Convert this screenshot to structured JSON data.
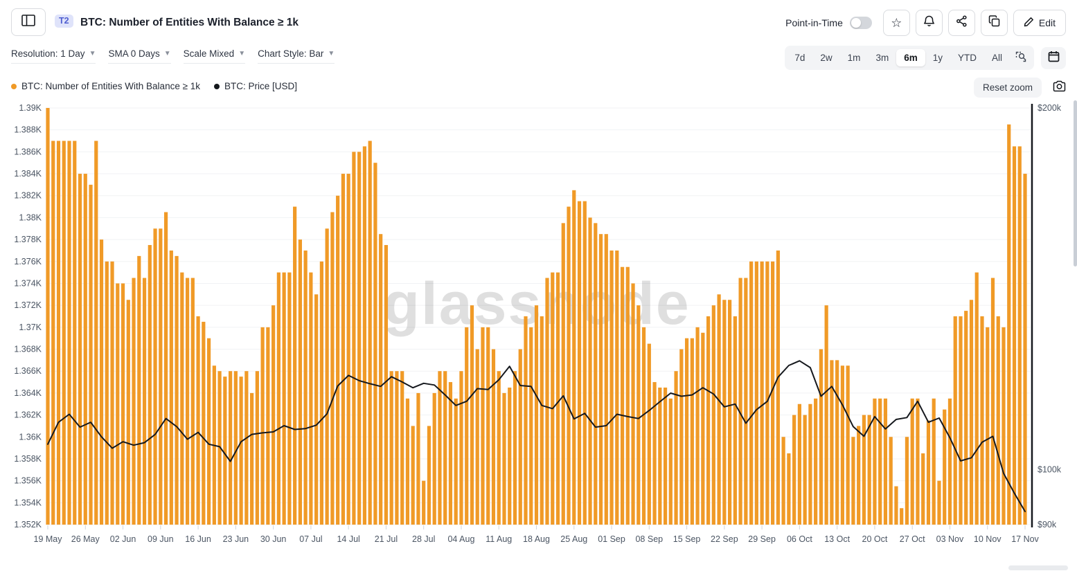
{
  "header": {
    "t2_badge": "T2",
    "title": "BTC: Number of Entities With Balance ≥ 1k",
    "point_in_time_label": "Point-in-Time",
    "point_in_time_state": "off",
    "edit_label": "Edit"
  },
  "controls": {
    "dropdowns": [
      {
        "id": "resolution",
        "label": "Resolution: 1 Day"
      },
      {
        "id": "sma",
        "label": "SMA 0 Days"
      },
      {
        "id": "scale",
        "label": "Scale Mixed"
      },
      {
        "id": "chart-style",
        "label": "Chart Style: Bar"
      }
    ],
    "ranges": [
      "7d",
      "2w",
      "1m",
      "3m",
      "6m",
      "1y",
      "YTD",
      "All"
    ],
    "active_range": "6m",
    "reset_zoom_label": "Reset zoom"
  },
  "legend": [
    {
      "label": "BTC: Number of Entities With Balance ≥ 1k",
      "color": "#F09A27"
    },
    {
      "label": "BTC: Price [USD]",
      "color": "#15181d"
    }
  ],
  "watermark": "glassnode",
  "colors": {
    "bar": "#F09A27",
    "price_line": "#15181d",
    "grid": "#f1f2f4",
    "axis_text": "#4b5563"
  },
  "chart_data": {
    "type": "bar",
    "title": "BTC: Number of Entities With Balance ≥ 1k",
    "grid": true,
    "legend_position": "top-left",
    "x_tick_labels": [
      "19 May",
      "26 May",
      "02 Jun",
      "09 Jun",
      "16 Jun",
      "23 Jun",
      "30 Jun",
      "07 Jul",
      "14 Jul",
      "21 Jul",
      "28 Jul",
      "04 Aug",
      "11 Aug",
      "18 Aug",
      "25 Aug",
      "01 Sep",
      "08 Sep",
      "15 Sep",
      "22 Sep",
      "29 Sep",
      "06 Oct",
      "13 Oct",
      "20 Oct",
      "27 Oct",
      "03 Nov",
      "10 Nov",
      "17 Nov"
    ],
    "x_tick_day_step": 7,
    "days": 183,
    "left_axis": {
      "title": "Number of Entities With Balance ≥ 1k",
      "min": 1352,
      "max": 1390,
      "tick_step": 2,
      "tick_labels": [
        "1.39K",
        "1.388K",
        "1.386K",
        "1.384K",
        "1.382K",
        "1.38K",
        "1.378K",
        "1.376K",
        "1.374K",
        "1.372K",
        "1.37K",
        "1.368K",
        "1.366K",
        "1.364K",
        "1.362K",
        "1.36K",
        "1.358K",
        "1.356K",
        "1.354K",
        "1.352K"
      ]
    },
    "right_axis": {
      "title": "BTC: Price [USD]",
      "scale": "log",
      "tick_labels": [
        "$200k",
        "$100k",
        "$90k"
      ],
      "tick_values_k": [
        200,
        100,
        90
      ],
      "min_k": 90,
      "max_k": 200
    },
    "series": [
      {
        "name": "BTC: Number of Entities With Balance ≥ 1k",
        "type": "bar",
        "color": "#F09A27",
        "values": [
          1390,
          1387,
          1387,
          1387,
          1387,
          1387,
          1384,
          1384,
          1383,
          1387,
          1378,
          1376,
          1376,
          1374,
          1374,
          1372.5,
          1374.5,
          1376.5,
          1374.5,
          1377.5,
          1379,
          1379,
          1380.5,
          1377,
          1376.5,
          1375,
          1374.5,
          1374.5,
          1371,
          1370.5,
          1369,
          1366.5,
          1366,
          1365.5,
          1366,
          1366,
          1365.5,
          1366,
          1364,
          1366,
          1370,
          1370,
          1372,
          1375,
          1375,
          1375,
          1381,
          1378,
          1377,
          1375,
          1373,
          1376,
          1379,
          1380.5,
          1382,
          1384,
          1384,
          1386,
          1386,
          1386.5,
          1387,
          1385,
          1378.5,
          1377.5,
          1366,
          1366,
          1366,
          1363.5,
          1361,
          1364,
          1356,
          1361,
          1364,
          1366,
          1366,
          1365,
          1363.5,
          1366,
          1370,
          1372,
          1368,
          1370,
          1370,
          1368,
          1366,
          1364,
          1364.5,
          1366,
          1368,
          1371,
          1370,
          1372,
          1371,
          1374.5,
          1375,
          1375,
          1379.5,
          1381,
          1382.5,
          1381.5,
          1381.5,
          1380,
          1379.5,
          1378.5,
          1378.5,
          1377,
          1377,
          1375.5,
          1375.5,
          1374,
          1372,
          1370,
          1368.5,
          1365,
          1364.5,
          1364.5,
          1363.5,
          1366,
          1368,
          1369,
          1369,
          1370,
          1369.5,
          1371,
          1372,
          1373,
          1372.5,
          1372.5,
          1371,
          1374.5,
          1374.5,
          1376,
          1376,
          1376,
          1376,
          1376,
          1377,
          1360,
          1358.5,
          1362,
          1363,
          1362,
          1363,
          1363.5,
          1368,
          1372,
          1367,
          1367,
          1366.5,
          1366.5,
          1360,
          1361,
          1362,
          1362,
          1363.5,
          1363.5,
          1363.5,
          1360,
          1355.5,
          1353.5,
          1360,
          1363.5,
          1363.5,
          1358.5,
          1361.5,
          1363.5,
          1356,
          1362.5,
          1363.5,
          1371,
          1371,
          1371.5,
          1372.5,
          1375,
          1371,
          1370,
          1374.5,
          1371,
          1370,
          1388.5,
          1386.5,
          1386.5,
          1384
        ]
      },
      {
        "name": "BTC: Price [USD]",
        "type": "line",
        "color": "#15181d",
        "points_day_value_k": [
          [
            0,
            105
          ],
          [
            2,
            109.5
          ],
          [
            4,
            111.2
          ],
          [
            6,
            108.5
          ],
          [
            8,
            109.5
          ],
          [
            10,
            106.5
          ],
          [
            12,
            104.2
          ],
          [
            14,
            105.5
          ],
          [
            16,
            104.8
          ],
          [
            18,
            105.3
          ],
          [
            20,
            107
          ],
          [
            22,
            110.3
          ],
          [
            24,
            108.6
          ],
          [
            26,
            106
          ],
          [
            28,
            107.4
          ],
          [
            30,
            105
          ],
          [
            32,
            104.5
          ],
          [
            34,
            101.6
          ],
          [
            36,
            105.5
          ],
          [
            38,
            107
          ],
          [
            40,
            107.3
          ],
          [
            42,
            107.5
          ],
          [
            44,
            108.8
          ],
          [
            46,
            108
          ],
          [
            48,
            108.2
          ],
          [
            50,
            108.9
          ],
          [
            52,
            111.3
          ],
          [
            54,
            117.4
          ],
          [
            56,
            119.8
          ],
          [
            58,
            118.6
          ],
          [
            60,
            117.9
          ],
          [
            62,
            117.3
          ],
          [
            64,
            119.5
          ],
          [
            66,
            118.3
          ],
          [
            68,
            117
          ],
          [
            70,
            118
          ],
          [
            72,
            117.6
          ],
          [
            74,
            115.4
          ],
          [
            76,
            113.1
          ],
          [
            78,
            114
          ],
          [
            80,
            116.8
          ],
          [
            82,
            116.6
          ],
          [
            84,
            118.8
          ],
          [
            86,
            121.9
          ],
          [
            88,
            117.5
          ],
          [
            90,
            117.3
          ],
          [
            92,
            113.1
          ],
          [
            94,
            112.4
          ],
          [
            96,
            115.2
          ],
          [
            98,
            110.2
          ],
          [
            100,
            111.4
          ],
          [
            102,
            108.5
          ],
          [
            104,
            108.8
          ],
          [
            106,
            111.2
          ],
          [
            108,
            110.7
          ],
          [
            110,
            110.3
          ],
          [
            112,
            112
          ],
          [
            114,
            113.9
          ],
          [
            116,
            115.8
          ],
          [
            118,
            115.1
          ],
          [
            120,
            115.4
          ],
          [
            122,
            117
          ],
          [
            124,
            115.6
          ],
          [
            126,
            112.8
          ],
          [
            128,
            113.4
          ],
          [
            130,
            109.3
          ],
          [
            132,
            112.2
          ],
          [
            134,
            114
          ],
          [
            136,
            119.4
          ],
          [
            138,
            122.1
          ],
          [
            140,
            123.2
          ],
          [
            142,
            121.6
          ],
          [
            144,
            115.1
          ],
          [
            146,
            117.3
          ],
          [
            148,
            113.2
          ],
          [
            150,
            108.6
          ],
          [
            152,
            106.6
          ],
          [
            154,
            110.7
          ],
          [
            156,
            108.1
          ],
          [
            158,
            110.1
          ],
          [
            160,
            110.5
          ],
          [
            162,
            114
          ],
          [
            164,
            109.5
          ],
          [
            166,
            110.4
          ],
          [
            168,
            106.3
          ],
          [
            170,
            101.7
          ],
          [
            172,
            102.3
          ],
          [
            174,
            105.4
          ],
          [
            176,
            106.6
          ],
          [
            178,
            99.3
          ],
          [
            180,
            95.6
          ],
          [
            182,
            92.3
          ]
        ]
      }
    ]
  }
}
